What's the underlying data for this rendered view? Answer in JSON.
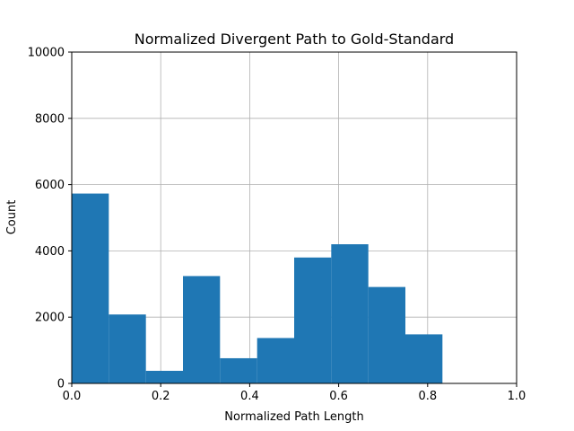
{
  "chart_data": {
    "type": "bar",
    "title": "Normalized Divergent Path to Gold-Standard",
    "xlabel": "Normalized Path Length",
    "ylabel": "Count",
    "xlim": [
      0.0,
      1.0
    ],
    "ylim": [
      0,
      10000
    ],
    "xticks": [
      "0.0",
      "0.2",
      "0.4",
      "0.6",
      "0.8",
      "1.0"
    ],
    "yticks": [
      "0",
      "2000",
      "4000",
      "6000",
      "8000",
      "10000"
    ],
    "grid": true,
    "color": "#1f77b4",
    "bins": [
      {
        "start": 0.0,
        "end": 0.0833,
        "count": 5730
      },
      {
        "start": 0.0833,
        "end": 0.1667,
        "count": 2080
      },
      {
        "start": 0.1667,
        "end": 0.25,
        "count": 380
      },
      {
        "start": 0.25,
        "end": 0.3333,
        "count": 3240
      },
      {
        "start": 0.3333,
        "end": 0.4167,
        "count": 760
      },
      {
        "start": 0.4167,
        "end": 0.5,
        "count": 1370
      },
      {
        "start": 0.5,
        "end": 0.5833,
        "count": 3800
      },
      {
        "start": 0.5833,
        "end": 0.6667,
        "count": 4200
      },
      {
        "start": 0.6667,
        "end": 0.75,
        "count": 2910
      },
      {
        "start": 0.75,
        "end": 0.8333,
        "count": 1480
      }
    ]
  }
}
